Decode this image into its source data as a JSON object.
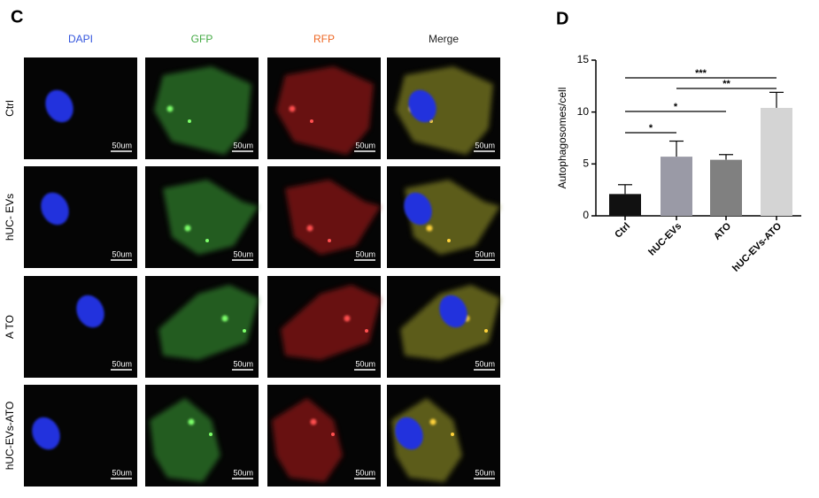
{
  "panel_c": {
    "label": "C",
    "columns": [
      "DAPI",
      "GFP",
      "RFP",
      "Merge"
    ],
    "rows": [
      "Ctrl",
      "hUC- EVs",
      "A TO",
      "hUC-EVs-ATO"
    ],
    "scale_bar": "50um"
  },
  "chart_data": {
    "type": "bar",
    "label": "D",
    "ylabel": "Autophagosomes/cell",
    "categories": [
      "Ctrl",
      "hUC-EVs",
      "ATO",
      "hUC-EVs-ATO"
    ],
    "values": [
      2.1,
      5.7,
      5.4,
      10.4
    ],
    "errors": [
      0.9,
      1.5,
      0.5,
      1.5
    ],
    "colors": [
      "#111111",
      "#9a9aa6",
      "#808080",
      "#d4d4d4"
    ],
    "ylim": [
      0,
      15
    ],
    "yticks": [
      0,
      5,
      10,
      15
    ],
    "annotations": [
      {
        "label": "*",
        "between": [
          "Ctrl",
          "hUC-EVs"
        ]
      },
      {
        "label": "*",
        "between": [
          "Ctrl",
          "ATO"
        ]
      },
      {
        "label": "**",
        "between": [
          "hUC-EVs",
          "hUC-EVs-ATO"
        ]
      },
      {
        "label": "***",
        "between": [
          "Ctrl",
          "hUC-EVs-ATO"
        ]
      }
    ]
  }
}
